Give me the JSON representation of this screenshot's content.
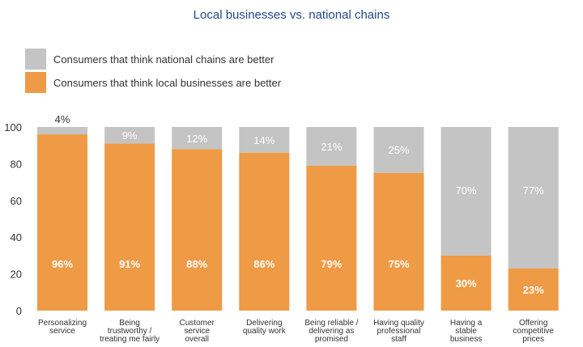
{
  "chart_data": {
    "type": "bar",
    "stacked": true,
    "title": "Local businesses vs. national chains",
    "categories": [
      [
        "Personalizing",
        "service"
      ],
      [
        "Being",
        "trustworthy /",
        "treating me fairly"
      ],
      [
        "Customer",
        "service",
        "overall"
      ],
      [
        "Delivering",
        "quality work"
      ],
      [
        "Being reliable /",
        "delivering as",
        "promised"
      ],
      [
        "Having quality",
        "professional",
        "staff"
      ],
      [
        "Having a",
        "stable",
        "business"
      ],
      [
        "Offering",
        "competitive",
        "prices"
      ]
    ],
    "series": [
      {
        "name": "Consumers that think local businesses are better",
        "values": [
          96,
          91,
          88,
          86,
          79,
          75,
          30,
          23
        ],
        "labels": [
          "96%",
          "91%",
          "88%",
          "86%",
          "79%",
          "75%",
          "30%",
          "23%"
        ]
      },
      {
        "name": "Consumers that think national chains are better",
        "values": [
          4,
          9,
          12,
          14,
          21,
          25,
          70,
          77
        ],
        "labels": [
          "4%",
          "9%",
          "12%",
          "14%",
          "21%",
          "25%",
          "70%",
          "77%"
        ]
      }
    ],
    "ylim": [
      0,
      100
    ],
    "yticks": [
      "0",
      "20",
      "40",
      "60",
      "80",
      "100"
    ],
    "grid": false,
    "legend_position": "top-left"
  },
  "colors": {
    "local": "#ef9a44",
    "national": "#c4c4c4",
    "title": "#1f4a86"
  }
}
